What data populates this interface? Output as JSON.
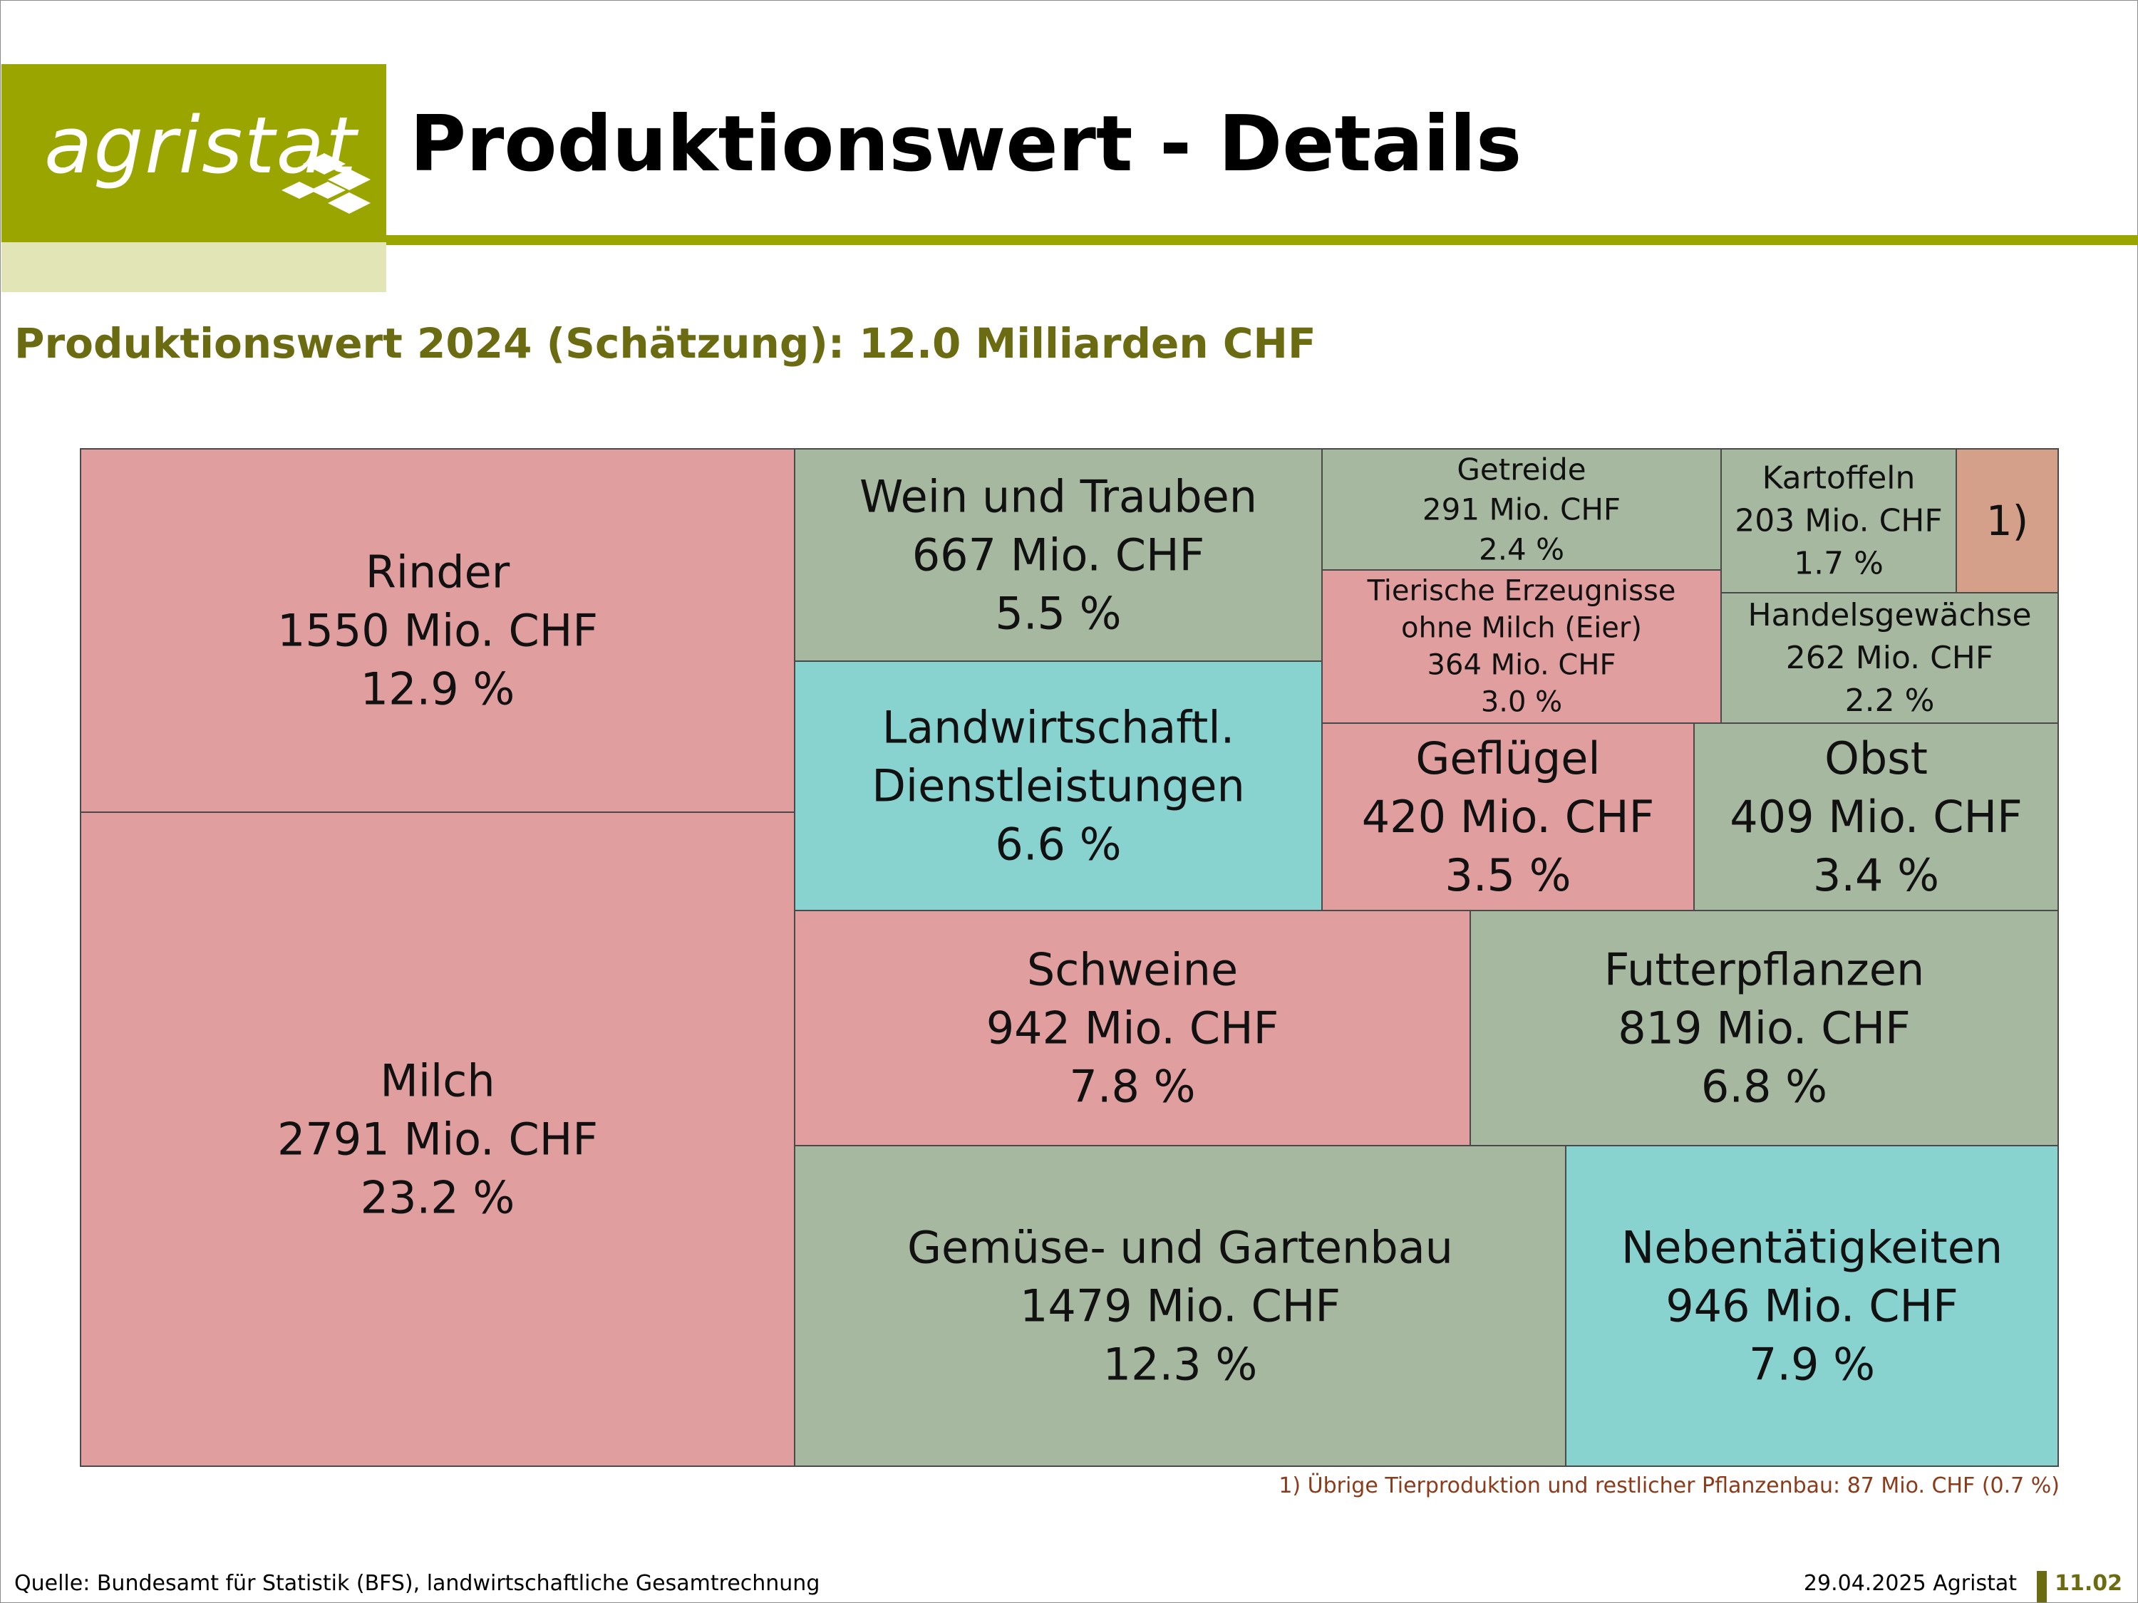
{
  "header": {
    "logo_text": "agristat",
    "title": "Produktionswert - Details"
  },
  "subtitle": "Produktionswert 2024 (Schätzung): 12.0 Milliarden CHF",
  "colors": {
    "brand": "#9aa500",
    "animal": "#e09e9e",
    "plant": "#a6b8a0",
    "service": "#88d2d0",
    "other": "#d4a08a",
    "subtitle": "#6b6b12"
  },
  "chart_data": {
    "type": "treemap",
    "unit": "Mio. CHF",
    "total_label": "12.0 Milliarden CHF",
    "items": [
      {
        "name": "Milch",
        "value": 2791,
        "value_label": "2791 Mio. CHF",
        "share": "23.2 %",
        "group": "animal"
      },
      {
        "name": "Rinder",
        "value": 1550,
        "value_label": "1550 Mio. CHF",
        "share": "12.9 %",
        "group": "animal"
      },
      {
        "name": "Gemüse- und Gartenbau",
        "value": 1479,
        "value_label": "1479 Mio. CHF",
        "share": "12.3 %",
        "group": "plant"
      },
      {
        "name": "Nebentätigkeiten",
        "value": 946,
        "value_label": "946 Mio. CHF",
        "share": "7.9 %",
        "group": "service"
      },
      {
        "name": "Schweine",
        "value": 942,
        "value_label": "942 Mio. CHF",
        "share": "7.8 %",
        "group": "animal"
      },
      {
        "name": "Futterpflanzen",
        "value": 819,
        "value_label": "819 Mio. CHF",
        "share": "6.8 %",
        "group": "plant"
      },
      {
        "name": "Landwirtschaftl. Dienstleistungen",
        "value": null,
        "value_label": "",
        "share": "6.6 %",
        "group": "service"
      },
      {
        "name": "Wein und Trauben",
        "value": 667,
        "value_label": "667 Mio. CHF",
        "share": "5.5 %",
        "group": "plant"
      },
      {
        "name": "Geflügel",
        "value": 420,
        "value_label": "420 Mio. CHF",
        "share": "3.5 %",
        "group": "animal"
      },
      {
        "name": "Obst",
        "value": 409,
        "value_label": "409 Mio. CHF",
        "share": "3.4 %",
        "group": "plant"
      },
      {
        "name": "Tierische Erzeugnisse ohne Milch (Eier)",
        "value": 364,
        "value_label": "364 Mio. CHF",
        "share": "3.0 %",
        "group": "animal"
      },
      {
        "name": "Getreide",
        "value": 291,
        "value_label": "291 Mio. CHF",
        "share": "2.4 %",
        "group": "plant"
      },
      {
        "name": "Handelsgewächse",
        "value": 262,
        "value_label": "262 Mio. CHF",
        "share": "2.2 %",
        "group": "plant"
      },
      {
        "name": "Kartoffeln",
        "value": 203,
        "value_label": "203 Mio. CHF",
        "share": "1.7 %",
        "group": "plant"
      },
      {
        "name": "1)",
        "value": 87,
        "value_label": "",
        "share": "",
        "group": "other"
      }
    ]
  },
  "footnote": "1) Übrige Tierproduktion und restlicher Pflanzenbau: 87 Mio. CHF (0.7 %)",
  "footer": {
    "source": "Quelle: Bundesamt für Statistik (BFS), landwirtschaftliche Gesamtrechnung",
    "date": "29.04.2025 Agristat",
    "slide_number": "11.02"
  }
}
